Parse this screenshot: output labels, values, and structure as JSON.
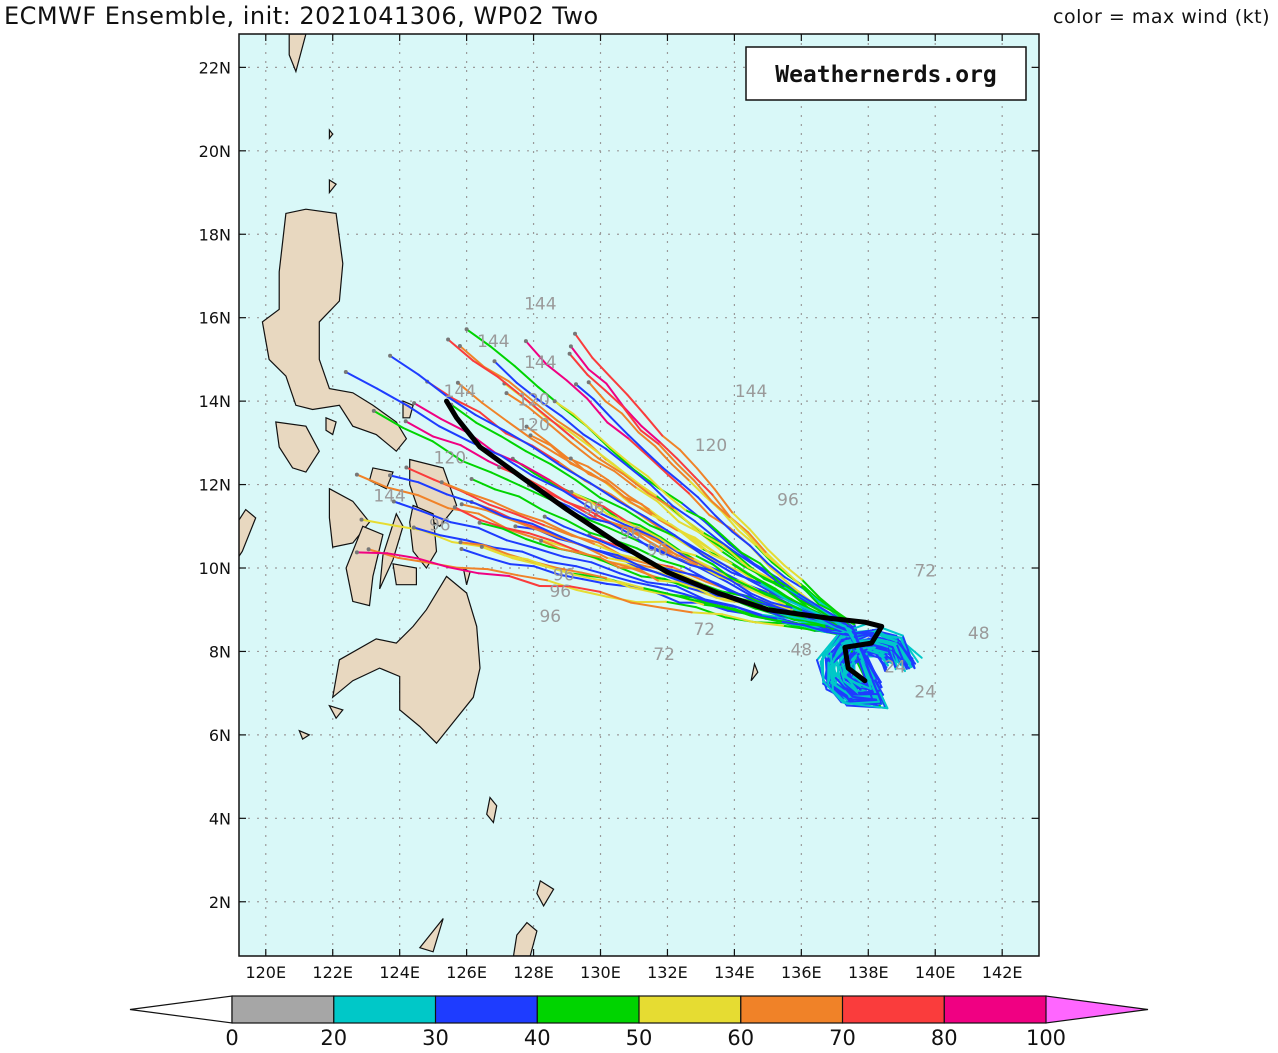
{
  "header": {
    "title": "ECMWF Ensemble, init: 2021041306, WP02 Two",
    "legend_title": "color = max wind (kt)"
  },
  "watermark": "Weathernerds.org",
  "map": {
    "lon_range": [
      119.2,
      143.1
    ],
    "lat_range": [
      0.7,
      22.8
    ],
    "lon_ticks": [
      "120E",
      "122E",
      "124E",
      "126E",
      "128E",
      "130E",
      "132E",
      "134E",
      "136E",
      "138E",
      "140E",
      "142E"
    ],
    "lat_ticks": [
      "2N",
      "4N",
      "6N",
      "8N",
      "10N",
      "12N",
      "14N",
      "16N",
      "18N",
      "20N",
      "22N"
    ],
    "ocean_color": "#d9f8f8",
    "land_color": "#e8d8c0",
    "ensemble_mean_color": "#000000"
  },
  "colorbar": {
    "colors": [
      "#a6a6a6",
      "#00c8c8",
      "#1e3cff",
      "#00d400",
      "#e6dc32",
      "#f08228",
      "#fa3c3c",
      "#f00082",
      "#ff66ff"
    ],
    "labels": [
      "0",
      "20",
      "30",
      "40",
      "50",
      "60",
      "70",
      "80",
      "100"
    ],
    "under_color": "#ffffff"
  },
  "time_labels": [
    {
      "text": "144",
      "lon": 128.2,
      "lat": 16.2
    },
    {
      "text": "144",
      "lon": 126.8,
      "lat": 15.3
    },
    {
      "text": "144",
      "lon": 128.2,
      "lat": 14.8
    },
    {
      "text": "144",
      "lon": 125.8,
      "lat": 14.1
    },
    {
      "text": "144",
      "lon": 134.5,
      "lat": 14.1
    },
    {
      "text": "120",
      "lon": 128.0,
      "lat": 13.9
    },
    {
      "text": "120",
      "lon": 128.0,
      "lat": 13.3
    },
    {
      "text": "120",
      "lon": 133.3,
      "lat": 12.8
    },
    {
      "text": "120",
      "lon": 125.5,
      "lat": 12.5
    },
    {
      "text": "144",
      "lon": 123.7,
      "lat": 11.6
    },
    {
      "text": "96",
      "lon": 135.6,
      "lat": 11.5
    },
    {
      "text": "96",
      "lon": 129.8,
      "lat": 11.3
    },
    {
      "text": "96",
      "lon": 130.9,
      "lat": 10.7
    },
    {
      "text": "96",
      "lon": 125.2,
      "lat": 10.9
    },
    {
      "text": "96",
      "lon": 131.7,
      "lat": 10.3
    },
    {
      "text": "96",
      "lon": 128.9,
      "lat": 9.7
    },
    {
      "text": "96",
      "lon": 128.8,
      "lat": 9.3
    },
    {
      "text": "96",
      "lon": 128.5,
      "lat": 8.7
    },
    {
      "text": "72",
      "lon": 139.7,
      "lat": 9.8
    },
    {
      "text": "72",
      "lon": 133.1,
      "lat": 8.4
    },
    {
      "text": "72",
      "lon": 131.9,
      "lat": 7.8
    },
    {
      "text": "48",
      "lon": 141.3,
      "lat": 8.3
    },
    {
      "text": "48",
      "lon": 136.0,
      "lat": 7.9
    },
    {
      "text": "24",
      "lon": 139.7,
      "lat": 6.9
    },
    {
      "text": "24",
      "lon": 138.8,
      "lat": 7.5
    }
  ]
}
